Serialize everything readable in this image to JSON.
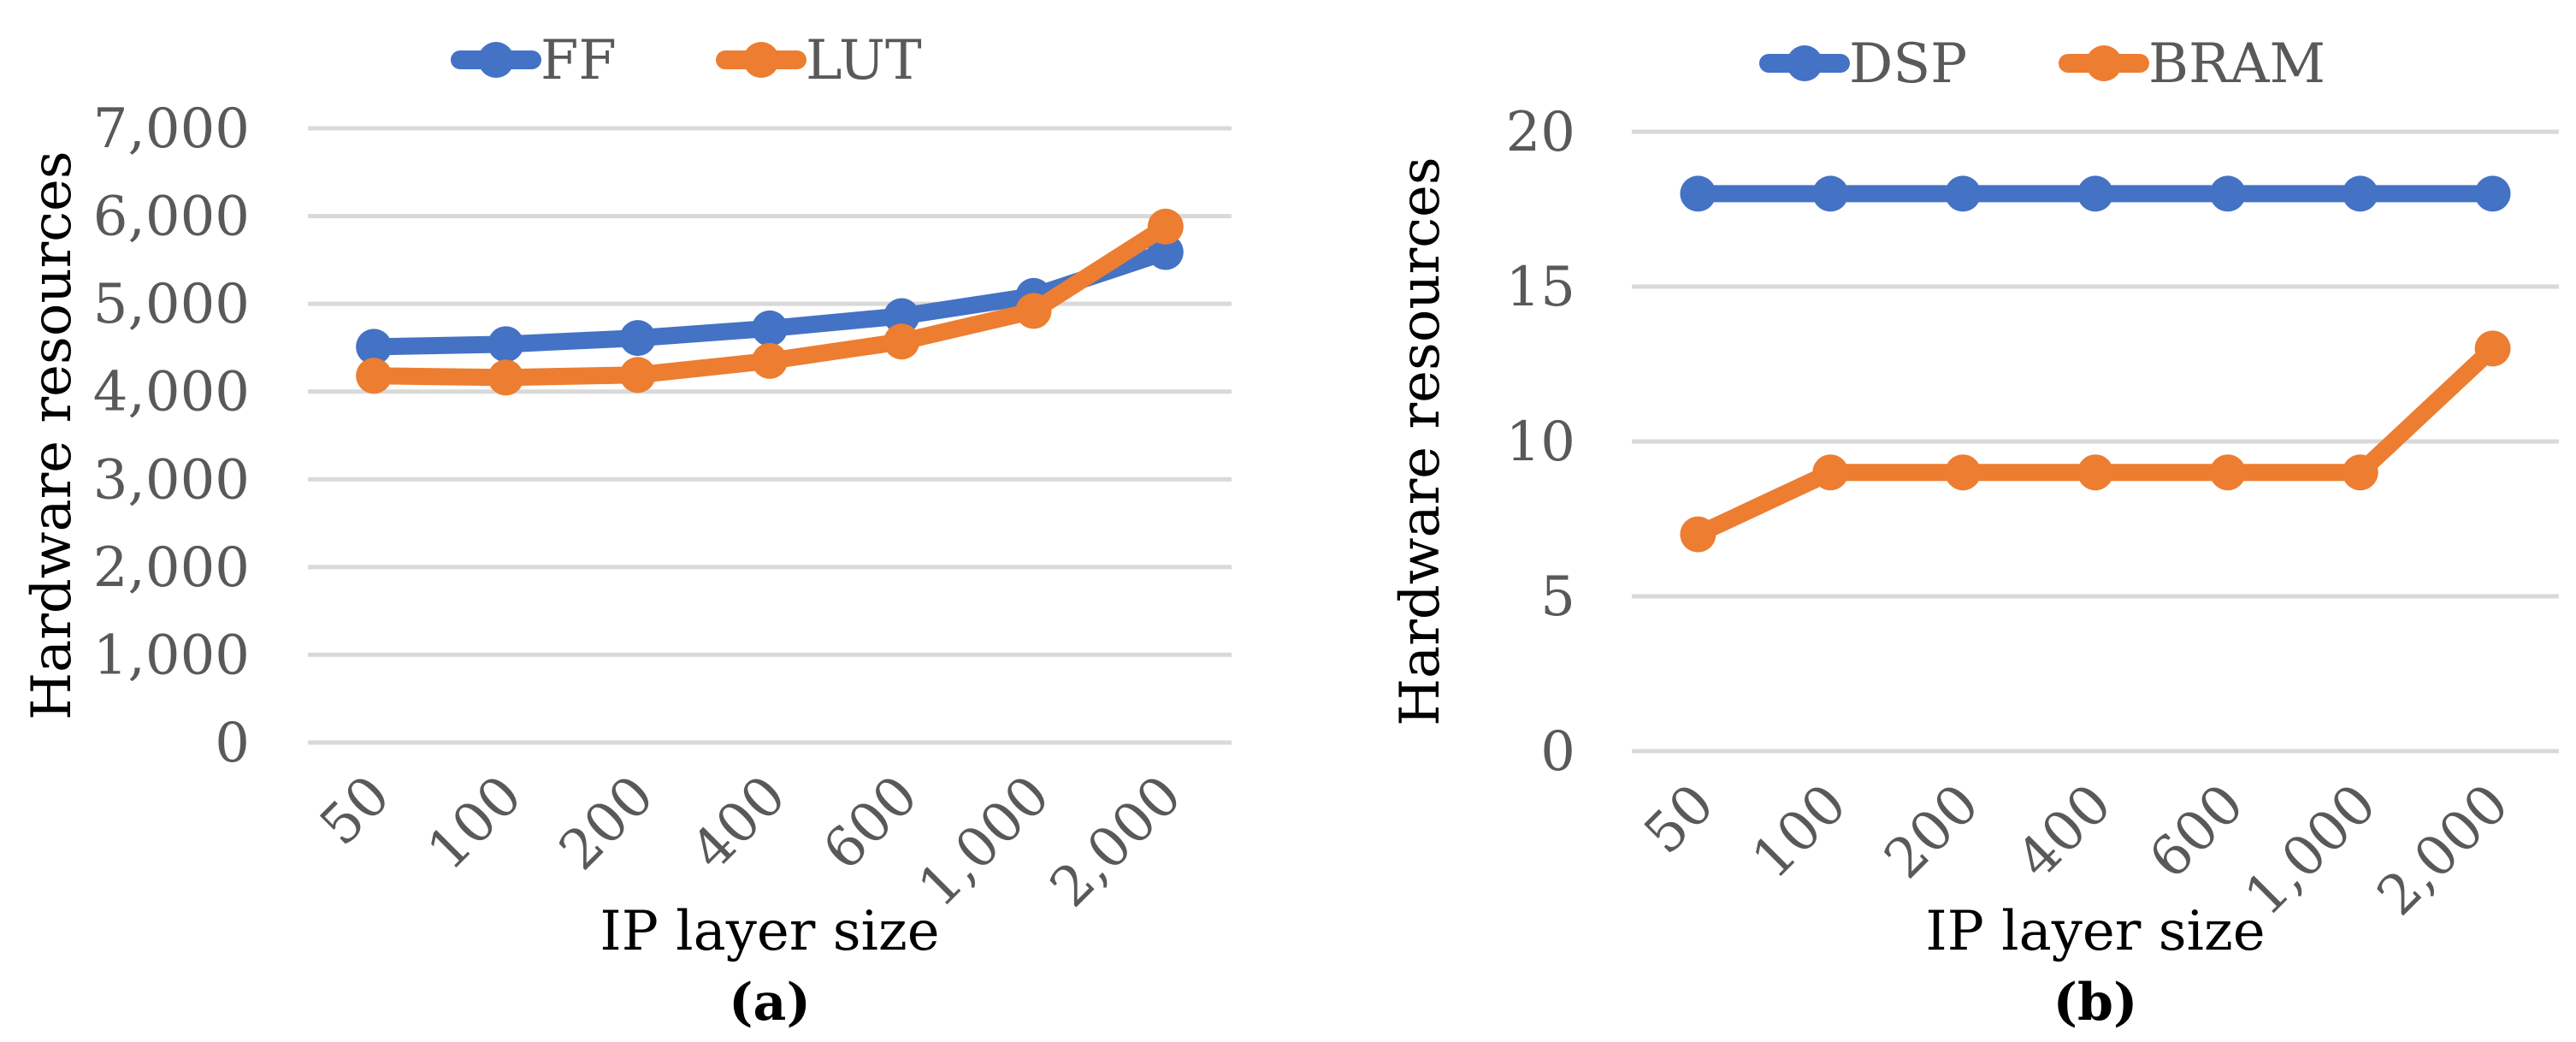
{
  "colors": {
    "series1": "#4472C4",
    "series2": "#ED7D31",
    "gridline": "#D9D9D9",
    "tick_text": "#595959",
    "axis_title": "#000000"
  },
  "chart_data": [
    {
      "type": "line",
      "caption": "(a)",
      "xlabel": "IP layer size",
      "ylabel": "Hardware resources",
      "categories": [
        "50",
        "100",
        "200",
        "400",
        "600",
        "1,000",
        "2,000"
      ],
      "ylim": [
        0,
        7000
      ],
      "yticks": [
        0,
        1000,
        2000,
        3000,
        4000,
        5000,
        6000,
        7000
      ],
      "ytick_labels": [
        "0",
        "1,000",
        "2,000",
        "3,000",
        "4,000",
        "5,000",
        "6,000",
        "7,000"
      ],
      "grid": true,
      "legend": "top",
      "series": [
        {
          "name": "FF",
          "color": "#4472C4",
          "values": [
            4510,
            4540,
            4610,
            4720,
            4860,
            5090,
            5590
          ]
        },
        {
          "name": "LUT",
          "color": "#ED7D31",
          "values": [
            4180,
            4160,
            4190,
            4350,
            4570,
            4920,
            5880
          ]
        }
      ]
    },
    {
      "type": "line",
      "caption": "(b)",
      "xlabel": "IP layer size",
      "ylabel": "Hardware resources",
      "categories": [
        "50",
        "100",
        "200",
        "400",
        "600",
        "1,000",
        "2,000"
      ],
      "ylim": [
        0,
        20
      ],
      "yticks": [
        0,
        5,
        10,
        15,
        20
      ],
      "ytick_labels": [
        "0",
        "5",
        "10",
        "15",
        "20"
      ],
      "grid": true,
      "legend": "top",
      "series": [
        {
          "name": "DSP",
          "color": "#4472C4",
          "values": [
            18,
            18,
            18,
            18,
            18,
            18,
            18
          ]
        },
        {
          "name": "BRAM",
          "color": "#ED7D31",
          "values": [
            7,
            9,
            9,
            9,
            9,
            9,
            13
          ]
        }
      ]
    }
  ]
}
